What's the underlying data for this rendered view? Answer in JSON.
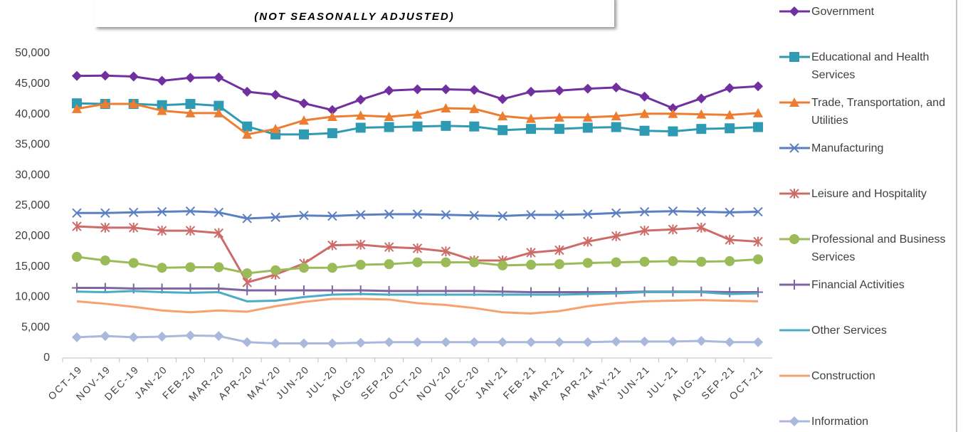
{
  "chart_data": {
    "type": "line",
    "subtitle": "(NOT SEASONALLY ADJUSTED)",
    "categories": [
      "OCT-19",
      "NOV-19",
      "DEC-19",
      "JAN-20",
      "FEB-20",
      "MAR-20",
      "APR-20",
      "MAY-20",
      "JUN-20",
      "JUL-20",
      "AUG-20",
      "SEP-20",
      "OCT-20",
      "NOV-20",
      "DEC-20",
      "JAN-21",
      "FEB-21",
      "MAR-21",
      "APR-21",
      "MAY-21",
      "JUN-21",
      "JUL-21",
      "AUG-21",
      "SEP-21",
      "OCT-21"
    ],
    "ylim": [
      0,
      50000
    ],
    "yticks": [
      0,
      {
        "value": 5000,
        "label": "5,000"
      },
      {
        "value": 10000,
        "label": "10,000"
      },
      {
        "value": 15000,
        "label": "15,000"
      },
      {
        "value": 20000,
        "label": "20,000"
      },
      {
        "value": 25000,
        "label": "25,000"
      },
      {
        "value": 30000,
        "label": "30,000"
      },
      {
        "value": 35000,
        "label": "35,000"
      },
      {
        "value": 40000,
        "label": "40,000"
      },
      {
        "value": 45000,
        "label": "45,000"
      },
      {
        "value": 50000,
        "label": "50,000"
      }
    ],
    "grid": false,
    "legend": "right",
    "series": [
      {
        "name": "Government",
        "color": "#7030a0",
        "marker": "diamond",
        "values": [
          46300,
          46350,
          46200,
          45500,
          46000,
          46050,
          43700,
          43200,
          41800,
          40700,
          42400,
          43900,
          44100,
          44100,
          44000,
          42500,
          43700,
          43900,
          44200,
          44400,
          42900,
          41000,
          42600,
          44300,
          44600
        ]
      },
      {
        "name": "Educational and Health Services",
        "color": "#2f9bb3",
        "marker": "square",
        "values": [
          41800,
          41700,
          41700,
          41500,
          41700,
          41400,
          38000,
          36700,
          36700,
          36900,
          37800,
          37900,
          38000,
          38100,
          38000,
          37400,
          37600,
          37600,
          37800,
          37900,
          37300,
          37200,
          37600,
          37700,
          37900
        ]
      },
      {
        "name": "Trade, Transportation, and Utilities",
        "color": "#ed7d31",
        "marker": "triangle",
        "values": [
          40900,
          41700,
          41700,
          40600,
          40200,
          40200,
          36700,
          37600,
          39000,
          39600,
          39800,
          39600,
          40000,
          41000,
          40900,
          39700,
          39300,
          39500,
          39500,
          39700,
          40100,
          40100,
          40000,
          39900,
          40200
        ]
      },
      {
        "name": "Manufacturing",
        "color": "#5b7fc0",
        "marker": "x",
        "values": [
          23800,
          23800,
          23900,
          24000,
          24100,
          23900,
          22900,
          23100,
          23400,
          23300,
          23500,
          23600,
          23600,
          23500,
          23400,
          23300,
          23500,
          23500,
          23600,
          23800,
          24000,
          24100,
          24000,
          23900,
          24000
        ]
      },
      {
        "name": "Leisure and Hospitality",
        "color": "#cc6b68",
        "marker": "star",
        "values": [
          21600,
          21400,
          21400,
          20900,
          20900,
          20500,
          12400,
          13700,
          15500,
          18500,
          18600,
          18200,
          18000,
          17500,
          16000,
          16000,
          17300,
          17700,
          19100,
          20000,
          20900,
          21100,
          21400,
          19400,
          19100
        ]
      },
      {
        "name": "Professional and Business Services",
        "color": "#9bbb59",
        "marker": "circle",
        "values": [
          16600,
          16000,
          15600,
          14800,
          14900,
          14900,
          13900,
          14400,
          14800,
          14800,
          15300,
          15400,
          15700,
          15700,
          15700,
          15200,
          15300,
          15400,
          15600,
          15700,
          15800,
          15900,
          15800,
          15900,
          16200
        ]
      },
      {
        "name": "Financial Activities",
        "color": "#8064a2",
        "marker": "plus",
        "values": [
          11500,
          11500,
          11400,
          11400,
          11400,
          11400,
          11100,
          11100,
          11100,
          11100,
          11100,
          11000,
          11000,
          11000,
          11000,
          10900,
          10800,
          10800,
          10800,
          10800,
          10900,
          10900,
          10900,
          10800,
          10800
        ]
      },
      {
        "name": "Other Services",
        "color": "#4bacc6",
        "marker": "none",
        "values": [
          10900,
          10800,
          11000,
          10800,
          10700,
          10800,
          9300,
          9400,
          10000,
          10400,
          10500,
          10400,
          10400,
          10400,
          10400,
          10400,
          10400,
          10400,
          10500,
          10600,
          10800,
          10800,
          10800,
          10500,
          10600
        ]
      },
      {
        "name": "Construction",
        "color": "#f7a070",
        "marker": "none",
        "values": [
          9300,
          8900,
          8400,
          7800,
          7500,
          7800,
          7600,
          8500,
          9200,
          9700,
          9700,
          9600,
          9000,
          8700,
          8200,
          7500,
          7300,
          7700,
          8500,
          9000,
          9300,
          9400,
          9500,
          9400,
          9300
        ]
      },
      {
        "name": "Information",
        "color": "#a9b8dc",
        "marker": "diamond",
        "values": [
          3400,
          3600,
          3400,
          3500,
          3700,
          3600,
          2600,
          2400,
          2400,
          2400,
          2500,
          2600,
          2600,
          2600,
          2600,
          2600,
          2600,
          2600,
          2600,
          2700,
          2700,
          2700,
          2800,
          2600,
          2600
        ]
      }
    ]
  }
}
